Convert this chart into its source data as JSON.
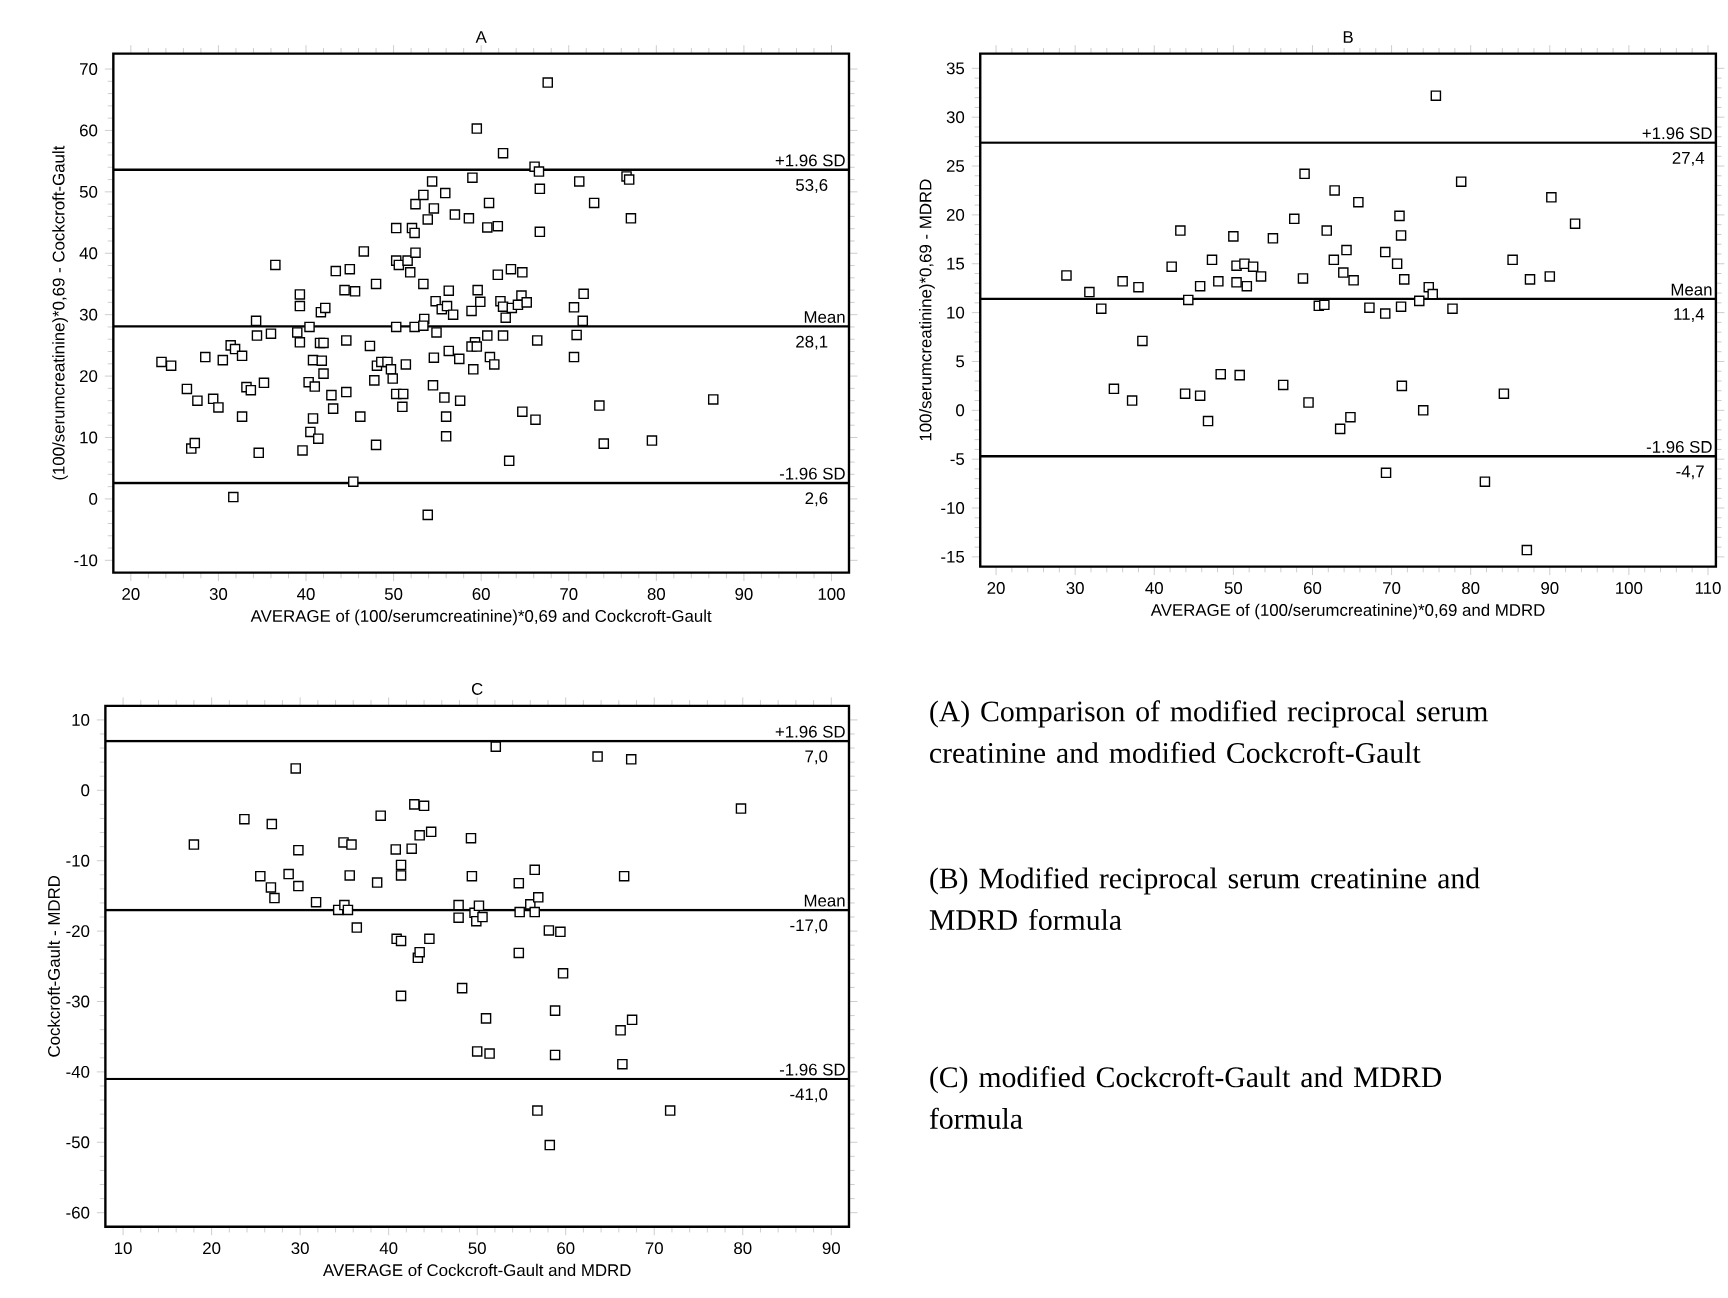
{
  "chart_data": [
    {
      "type": "scatter",
      "title": "A",
      "xlabel": "AVERAGE of (100/serumcreatinine)*0,69 and Cockcroft-Gault",
      "ylabel": "(100/serumcreatinine)*0,69 - Cockcroft-Gault",
      "color": "#000000",
      "marker": "square",
      "x": [
        23.5,
        24.6,
        26.4,
        26.9,
        27.3,
        27.6,
        28.5,
        29.4,
        30.0,
        30.5,
        31.4,
        31.9,
        31.7,
        32.7,
        32.7,
        33.2,
        33.7,
        34.3,
        34.4,
        34.6,
        35.2,
        36.0,
        36.5,
        39.3,
        39.3,
        39.0,
        39.3,
        39.6,
        40.4,
        40.3,
        40.5,
        40.8,
        40.8,
        41.0,
        41.4,
        41.7,
        41.6,
        41.8,
        42.0,
        42.2,
        42.0,
        42.9,
        43.1,
        43.4,
        44.4,
        44.6,
        44.6,
        45.0,
        45.4,
        45.6,
        46.2,
        46.6,
        47.3,
        47.8,
        48.0,
        48.0,
        48.1,
        48.6,
        49.3,
        49.7,
        49.9,
        50.3,
        50.3,
        50.6,
        50.3,
        50.3,
        51.0,
        51.1,
        51.4,
        51.6,
        51.9,
        52.1,
        52.4,
        52.5,
        52.4,
        52.5,
        53.4,
        53.4,
        53.5,
        53.4,
        53.9,
        53.9,
        54.4,
        54.6,
        54.6,
        54.5,
        54.8,
        54.9,
        55.5,
        55.9,
        55.8,
        56.0,
        56.0,
        56.3,
        56.1,
        56.3,
        56.8,
        57.0,
        59.0,
        59.5,
        58.9,
        59.6,
        59.9,
        59.3,
        58.9,
        59.5,
        59.1,
        57.6,
        58.6,
        57.5,
        60.9,
        60.7,
        61.9,
        60.7,
        61.0,
        61.5,
        61.9,
        62.2,
        62.5,
        62.5,
        62.8,
        62.5,
        63.4,
        63.5,
        63.2,
        64.7,
        64.6,
        64.2,
        65.2,
        64.7,
        66.2,
        66.1,
        66.6,
        66.7,
        66.7,
        66.4,
        67.6,
        70.6,
        71.2,
        71.7,
        71.6,
        70.9,
        70.6,
        72.9,
        73.5,
        74.0,
        76.6,
        76.9,
        77.1,
        79.5,
        86.5
      ],
      "values": [
        22.3,
        21.7,
        17.9,
        8.2,
        9.1,
        16.0,
        23.1,
        16.3,
        14.9,
        22.6,
        25.0,
        24.4,
        0.3,
        23.3,
        13.4,
        18.2,
        17.7,
        29.0,
        26.6,
        7.5,
        18.9,
        26.9,
        38.1,
        33.3,
        31.4,
        27.1,
        25.5,
        7.9,
        28.0,
        19.0,
        10.9,
        13.1,
        22.6,
        18.3,
        9.8,
        30.4,
        25.4,
        22.5,
        20.4,
        31.1,
        25.4,
        16.9,
        14.7,
        37.1,
        34.0,
        25.8,
        17.4,
        37.4,
        2.8,
        33.8,
        13.4,
        40.3,
        24.9,
        19.3,
        35.0,
        8.8,
        21.7,
        22.3,
        22.3,
        21.1,
        19.6,
        44.1,
        38.8,
        38.1,
        28.0,
        17.1,
        15.0,
        17.1,
        21.9,
        38.8,
        36.9,
        44.1,
        43.3,
        40.1,
        28.0,
        48.0,
        35.0,
        49.5,
        29.3,
        28.2,
        45.5,
        -2.6,
        51.7,
        47.3,
        23.0,
        18.5,
        32.2,
        27.1,
        30.9,
        49.8,
        16.5,
        13.4,
        10.2,
        33.9,
        31.4,
        24.1,
        30.0,
        46.3,
        52.3,
        60.3,
        30.6,
        34.0,
        32.1,
        25.5,
        24.8,
        24.8,
        21.1,
        16.0,
        45.7,
        22.8,
        48.2,
        44.2,
        44.4,
        26.6,
        23.1,
        21.9,
        36.5,
        32.2,
        56.3,
        26.6,
        29.5,
        31.3,
        37.4,
        31.1,
        6.2,
        36.9,
        33.1,
        31.6,
        32.0,
        14.2,
        12.9,
        54.1,
        53.3,
        50.5,
        43.5,
        25.8,
        67.8,
        31.2,
        51.7,
        33.4,
        29.0,
        26.7,
        23.1,
        48.2,
        15.2,
        9.0,
        52.5,
        52.0,
        45.7,
        9.5,
        16.2
      ],
      "xlim": [
        18,
        102
      ],
      "ylim": [
        -12,
        72.5
      ],
      "xticks": [
        20,
        30,
        40,
        50,
        60,
        70,
        80,
        90,
        100
      ],
      "yticks": [
        -10,
        0,
        10,
        20,
        30,
        40,
        50,
        60,
        70
      ],
      "ref_lines": [
        {
          "axis": "y",
          "value": 53.6,
          "label": "+1.96 SD"
        },
        {
          "axis": "y",
          "value": 28.1,
          "label": "Mean"
        },
        {
          "axis": "y",
          "value": 2.6,
          "label": "-1.96 SD"
        }
      ],
      "annotations": [
        {
          "text": "53,6",
          "x": 100,
          "y": 53.6
        },
        {
          "text": "28,1",
          "x": 100,
          "y": 28.1
        },
        {
          "text": "2,6",
          "x": 100,
          "y": 2.6
        }
      ]
    },
    {
      "type": "scatter",
      "title": "B",
      "xlabel": "AVERAGE of (100/serumcreatinine)*0,69 and MDRD",
      "ylabel": "100/serumcreatinine)*0,69 - MDRD",
      "color": "#000000",
      "marker": "square",
      "x": [
        28.9,
        31.8,
        33.3,
        34.9,
        36.0,
        37.2,
        38.0,
        38.5,
        42.2,
        43.3,
        43.9,
        44.3,
        45.8,
        45.8,
        46.8,
        47.3,
        48.1,
        48.4,
        50.0,
        50.4,
        50.4,
        50.8,
        51.4,
        51.7,
        52.5,
        53.5,
        55.0,
        56.3,
        57.7,
        59.0,
        58.8,
        59.5,
        60.8,
        61.5,
        61.8,
        62.7,
        62.8,
        63.5,
        63.9,
        64.3,
        64.8,
        65.2,
        65.8,
        67.2,
        69.2,
        69.2,
        69.3,
        70.7,
        71.0,
        71.2,
        71.2,
        71.3,
        71.6,
        73.5,
        74.0,
        74.7,
        75.2,
        75.6,
        77.7,
        78.8,
        81.8,
        84.2,
        85.3,
        87.5,
        87.1,
        90.0,
        90.2,
        93.2
      ],
      "values": [
        13.8,
        12.1,
        10.4,
        2.2,
        13.2,
        1.0,
        12.6,
        7.1,
        14.7,
        18.4,
        1.7,
        11.3,
        1.5,
        12.7,
        -1.1,
        15.4,
        13.2,
        3.7,
        17.8,
        14.8,
        13.1,
        3.6,
        15.0,
        12.7,
        14.7,
        13.7,
        17.6,
        2.6,
        19.6,
        24.2,
        13.5,
        0.8,
        10.7,
        10.8,
        18.4,
        15.4,
        22.5,
        -1.9,
        14.1,
        16.4,
        -0.7,
        13.3,
        21.3,
        10.5,
        16.2,
        9.9,
        -6.4,
        15.0,
        19.9,
        17.9,
        10.6,
        2.5,
        13.4,
        11.2,
        0.0,
        12.6,
        11.9,
        32.2,
        10.4,
        23.4,
        -7.3,
        1.7,
        15.4,
        13.4,
        -14.3,
        13.7,
        21.8,
        19.1
      ],
      "xlim": [
        18,
        111
      ],
      "ylim": [
        -16,
        36.5
      ],
      "xticks": [
        20,
        30,
        40,
        50,
        60,
        70,
        80,
        90,
        100,
        110
      ],
      "yticks": [
        -15,
        -10,
        -5,
        0,
        5,
        10,
        15,
        20,
        25,
        30,
        35
      ],
      "ref_lines": [
        {
          "axis": "y",
          "value": 27.4,
          "label": "+1.96 SD"
        },
        {
          "axis": "y",
          "value": 11.4,
          "label": "Mean"
        },
        {
          "axis": "y",
          "value": -4.7,
          "label": "-1.96 SD"
        }
      ],
      "annotations": [
        {
          "text": "27,4",
          "x": 110,
          "y": 27.4
        },
        {
          "text": "11,4",
          "x": 110,
          "y": 11.4
        },
        {
          "text": "-4,7",
          "x": 110,
          "y": -4.7
        }
      ]
    },
    {
      "type": "scatter",
      "title": "C",
      "xlabel": "AVERAGE of Cockcroft-Gault and MDRD",
      "ylabel": "Cockcroft-Gault - MDRD",
      "color": "#000000",
      "marker": "square",
      "x": [
        18.0,
        23.7,
        25.5,
        26.8,
        26.7,
        27.1,
        28.7,
        29.5,
        29.8,
        29.8,
        31.8,
        34.3,
        34.9,
        35.0,
        35.4,
        35.6,
        35.8,
        36.4,
        38.7,
        39.1,
        40.8,
        40.9,
        41.4,
        41.4,
        41.4,
        41.4,
        42.6,
        42.9,
        43.3,
        43.5,
        43.5,
        44.0,
        44.6,
        44.8,
        47.9,
        47.9,
        48.3,
        49.3,
        49.4,
        49.7,
        49.9,
        50.2,
        50.6,
        50.0,
        51.0,
        51.4,
        52.1,
        54.7,
        54.7,
        54.8,
        56.0,
        56.5,
        56.5,
        56.8,
        56.9,
        58.1,
        58.8,
        58.8,
        58.2,
        59.4,
        59.7,
        63.6,
        66.2,
        66.4,
        66.6,
        67.4,
        67.5,
        71.8,
        79.8
      ],
      "values": [
        -7.7,
        -4.1,
        -12.2,
        -4.8,
        -13.8,
        -15.3,
        -11.9,
        3.1,
        -8.5,
        -13.6,
        -15.9,
        -17.0,
        -7.4,
        -16.3,
        -17.0,
        -12.1,
        -7.7,
        -19.5,
        -13.1,
        -3.6,
        -8.4,
        -21.1,
        -10.6,
        -12.1,
        -21.4,
        -29.2,
        -8.3,
        -2.0,
        -23.8,
        -23.0,
        -6.4,
        -2.2,
        -21.1,
        -5.9,
        -16.3,
        -18.1,
        -28.1,
        -6.8,
        -12.2,
        -17.4,
        -18.6,
        -16.4,
        -18.0,
        -37.1,
        -32.4,
        -37.4,
        6.2,
        -23.1,
        -13.2,
        -17.3,
        -16.2,
        -11.3,
        -17.3,
        -45.5,
        -15.2,
        -19.9,
        -31.3,
        -37.6,
        -50.4,
        -20.1,
        -26.0,
        4.8,
        -34.1,
        -38.9,
        -12.2,
        4.4,
        -32.6,
        -45.5,
        -2.6
      ],
      "xlim": [
        8,
        92
      ],
      "ylim": [
        -62,
        12
      ],
      "xticks": [
        10,
        20,
        30,
        40,
        50,
        60,
        70,
        80,
        90
      ],
      "yticks": [
        -60,
        -50,
        -40,
        -30,
        -20,
        -10,
        0,
        10
      ],
      "ref_lines": [
        {
          "axis": "y",
          "value": 7.0,
          "label": "+1.96 SD"
        },
        {
          "axis": "y",
          "value": -17.0,
          "label": "Mean"
        },
        {
          "axis": "y",
          "value": -41.0,
          "label": "-1.96 SD"
        }
      ],
      "annotations": [
        {
          "text": "7,0",
          "x": 90,
          "y": 7.0
        },
        {
          "text": "-17,0",
          "x": 90,
          "y": -17.0
        },
        {
          "text": "-41,0",
          "x": 90,
          "y": -41.0
        }
      ]
    },
    {
      "type": "other",
      "annotations": [
        "(A) Comparison of modified reciprocal serum creatinine and modified Cockcroft-Gault",
        "(B) Modified reciprocal serum creatinine and MDRD formula",
        "(C) modified Cockcroft-Gault and MDRD formula"
      ]
    }
  ]
}
